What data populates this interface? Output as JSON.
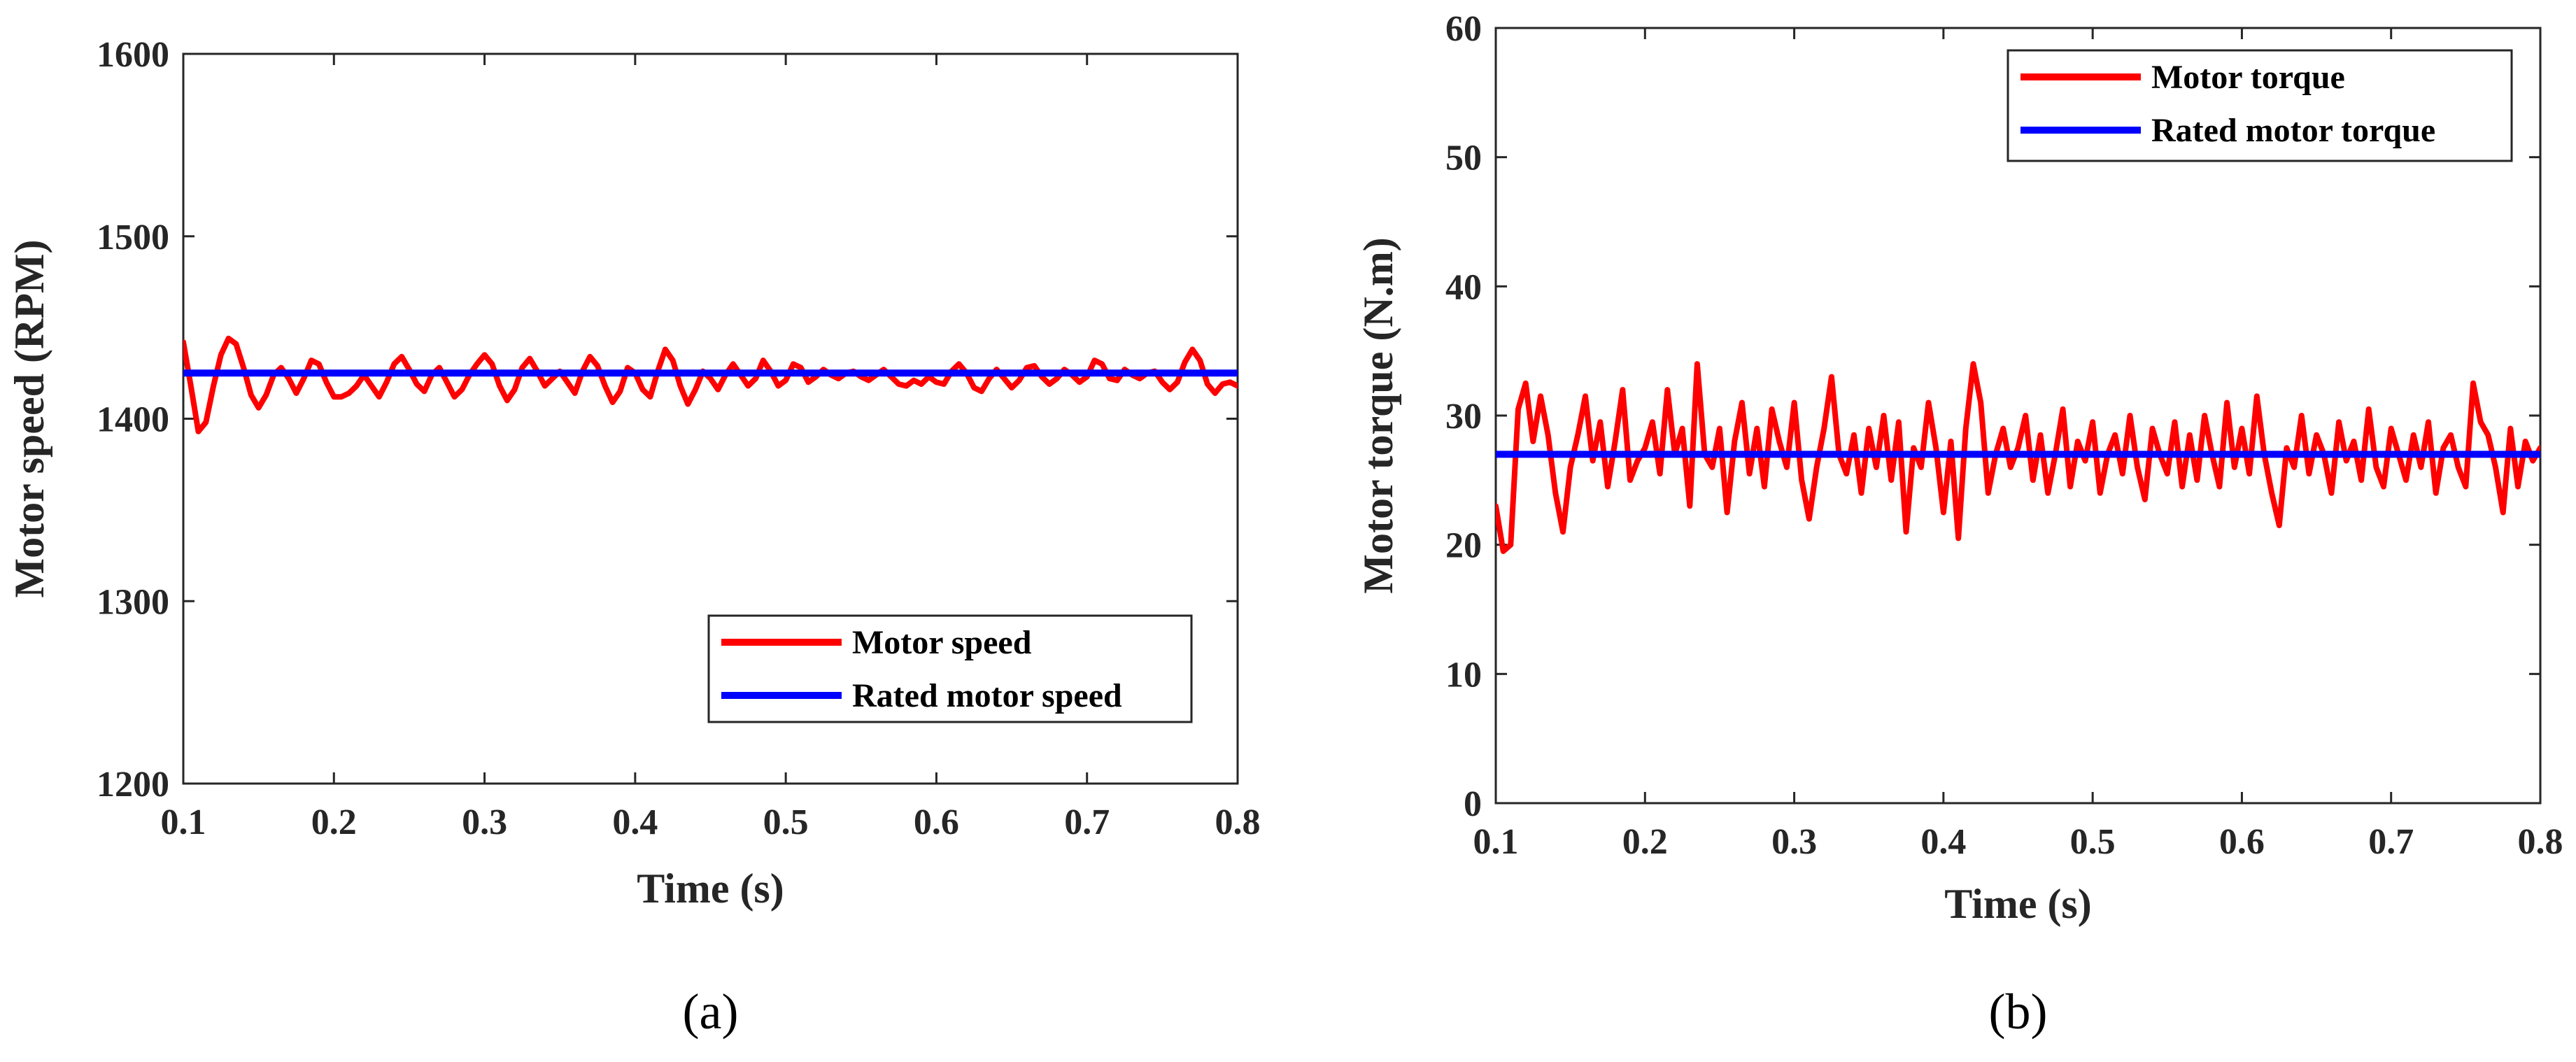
{
  "chart_data": [
    {
      "type": "line",
      "caption": "(a)",
      "xlabel": "Time (s)",
      "ylabel": "Motor speed (RPM)",
      "xlim": [
        0.1,
        0.8
      ],
      "ylim": [
        1200,
        1600
      ],
      "xticks": [
        "0.1",
        "0.2",
        "0.3",
        "0.4",
        "0.5",
        "0.6",
        "0.7",
        "0.8"
      ],
      "yticks": [
        "1200",
        "1300",
        "1400",
        "1500",
        "1600"
      ],
      "grid": false,
      "legend_position": "bottom-right",
      "series": [
        {
          "name": "Motor speed",
          "color": "#ff0000",
          "x": [
            0.1,
            0.105,
            0.11,
            0.115,
            0.12,
            0.125,
            0.13,
            0.135,
            0.14,
            0.145,
            0.15,
            0.155,
            0.16,
            0.165,
            0.17,
            0.175,
            0.18,
            0.185,
            0.19,
            0.195,
            0.2,
            0.205,
            0.21,
            0.215,
            0.22,
            0.225,
            0.23,
            0.235,
            0.24,
            0.245,
            0.25,
            0.255,
            0.26,
            0.265,
            0.27,
            0.275,
            0.28,
            0.285,
            0.29,
            0.295,
            0.3,
            0.305,
            0.31,
            0.315,
            0.32,
            0.325,
            0.33,
            0.335,
            0.34,
            0.345,
            0.35,
            0.355,
            0.36,
            0.365,
            0.37,
            0.375,
            0.38,
            0.385,
            0.39,
            0.395,
            0.4,
            0.405,
            0.41,
            0.415,
            0.42,
            0.425,
            0.43,
            0.435,
            0.44,
            0.445,
            0.45,
            0.455,
            0.46,
            0.465,
            0.47,
            0.475,
            0.48,
            0.485,
            0.49,
            0.495,
            0.5,
            0.505,
            0.51,
            0.515,
            0.52,
            0.525,
            0.53,
            0.535,
            0.54,
            0.545,
            0.55,
            0.555,
            0.56,
            0.565,
            0.57,
            0.575,
            0.58,
            0.585,
            0.59,
            0.595,
            0.6,
            0.605,
            0.61,
            0.615,
            0.62,
            0.625,
            0.63,
            0.635,
            0.64,
            0.645,
            0.65,
            0.655,
            0.66,
            0.665,
            0.67,
            0.675,
            0.68,
            0.685,
            0.69,
            0.695,
            0.7,
            0.705,
            0.71,
            0.715,
            0.72,
            0.725,
            0.73,
            0.735,
            0.74,
            0.745,
            0.75,
            0.755,
            0.76,
            0.765,
            0.77,
            0.775,
            0.78,
            0.785,
            0.79,
            0.795,
            0.8
          ],
          "y": [
            1442,
            1418,
            1393,
            1398,
            1418,
            1435,
            1444,
            1441,
            1428,
            1413,
            1406,
            1413,
            1424,
            1428,
            1422,
            1414,
            1422,
            1432,
            1430,
            1420,
            1412,
            1412,
            1414,
            1418,
            1424,
            1418,
            1412,
            1420,
            1430,
            1434,
            1427,
            1419,
            1415,
            1424,
            1428,
            1420,
            1412,
            1416,
            1424,
            1430,
            1435,
            1430,
            1418,
            1410,
            1416,
            1428,
            1433,
            1426,
            1418,
            1422,
            1426,
            1420,
            1414,
            1426,
            1434,
            1429,
            1418,
            1409,
            1415,
            1428,
            1425,
            1416,
            1412,
            1426,
            1438,
            1432,
            1418,
            1408,
            1416,
            1426,
            1422,
            1416,
            1424,
            1430,
            1424,
            1418,
            1422,
            1432,
            1426,
            1418,
            1421,
            1430,
            1428,
            1420,
            1423,
            1427,
            1424,
            1422,
            1425,
            1426,
            1423,
            1421,
            1424,
            1427,
            1423,
            1419,
            1418,
            1421,
            1419,
            1423,
            1420,
            1419,
            1426,
            1430,
            1425,
            1417,
            1415,
            1422,
            1427,
            1422,
            1417,
            1421,
            1428,
            1429,
            1423,
            1419,
            1422,
            1427,
            1424,
            1420,
            1423,
            1432,
            1430,
            1422,
            1421,
            1427,
            1424,
            1422,
            1425,
            1426,
            1420,
            1416,
            1420,
            1431,
            1438,
            1432,
            1419,
            1414,
            1419,
            1420,
            1418
          ]
        },
        {
          "name": "Rated motor speed",
          "color": "#0000ff",
          "x": [
            0.1,
            0.8
          ],
          "y": [
            1425,
            1425
          ]
        }
      ]
    },
    {
      "type": "line",
      "caption": "(b)",
      "xlabel": "Time (s)",
      "ylabel": "Motor torque (N.m)",
      "xlim": [
        0.1,
        0.8
      ],
      "ylim": [
        0,
        60
      ],
      "xticks": [
        "0.1",
        "0.2",
        "0.3",
        "0.4",
        "0.5",
        "0.6",
        "0.7",
        "0.8"
      ],
      "yticks": [
        "0",
        "10",
        "20",
        "30",
        "40",
        "50",
        "60"
      ],
      "grid": false,
      "legend_position": "top-right",
      "series": [
        {
          "name": "Motor torque",
          "color": "#ff0000",
          "x": [
            0.1,
            0.105,
            0.11,
            0.115,
            0.12,
            0.125,
            0.13,
            0.135,
            0.14,
            0.145,
            0.15,
            0.155,
            0.16,
            0.165,
            0.17,
            0.175,
            0.18,
            0.185,
            0.19,
            0.195,
            0.2,
            0.205,
            0.21,
            0.215,
            0.22,
            0.225,
            0.23,
            0.235,
            0.24,
            0.245,
            0.25,
            0.255,
            0.26,
            0.265,
            0.27,
            0.275,
            0.28,
            0.285,
            0.29,
            0.295,
            0.3,
            0.305,
            0.31,
            0.315,
            0.32,
            0.325,
            0.33,
            0.335,
            0.34,
            0.345,
            0.35,
            0.355,
            0.36,
            0.365,
            0.37,
            0.375,
            0.38,
            0.385,
            0.39,
            0.395,
            0.4,
            0.405,
            0.41,
            0.415,
            0.42,
            0.425,
            0.43,
            0.435,
            0.44,
            0.445,
            0.45,
            0.455,
            0.46,
            0.465,
            0.47,
            0.475,
            0.48,
            0.485,
            0.49,
            0.495,
            0.5,
            0.505,
            0.51,
            0.515,
            0.52,
            0.525,
            0.53,
            0.535,
            0.54,
            0.545,
            0.55,
            0.555,
            0.56,
            0.565,
            0.57,
            0.575,
            0.58,
            0.585,
            0.59,
            0.595,
            0.6,
            0.605,
            0.61,
            0.615,
            0.62,
            0.625,
            0.63,
            0.635,
            0.64,
            0.645,
            0.65,
            0.655,
            0.66,
            0.665,
            0.67,
            0.675,
            0.68,
            0.685,
            0.69,
            0.695,
            0.7,
            0.705,
            0.71,
            0.715,
            0.72,
            0.725,
            0.73,
            0.735,
            0.74,
            0.745,
            0.75,
            0.755,
            0.76,
            0.765,
            0.77,
            0.775,
            0.78,
            0.785,
            0.79,
            0.795,
            0.8
          ],
          "y": [
            23.0,
            19.5,
            20.0,
            30.5,
            32.5,
            28.0,
            31.5,
            28.5,
            24.0,
            21.0,
            26.0,
            28.5,
            31.5,
            26.5,
            29.5,
            24.5,
            28.0,
            32.0,
            25.0,
            26.5,
            27.5,
            29.5,
            25.5,
            32.0,
            27.0,
            29.0,
            23.0,
            34.0,
            27.0,
            26.0,
            29.0,
            22.5,
            28.0,
            31.0,
            25.5,
            29.0,
            24.5,
            30.5,
            28.0,
            26.0,
            31.0,
            25.0,
            22.0,
            26.0,
            29.0,
            33.0,
            27.0,
            25.5,
            28.5,
            24.0,
            29.0,
            26.0,
            30.0,
            25.0,
            29.5,
            21.0,
            27.5,
            26.0,
            31.0,
            27.5,
            22.5,
            28.0,
            20.5,
            29.0,
            34.0,
            31.0,
            24.0,
            27.0,
            29.0,
            26.0,
            27.5,
            30.0,
            25.0,
            28.5,
            24.0,
            27.0,
            30.5,
            24.5,
            28.0,
            26.5,
            29.5,
            24.0,
            27.0,
            28.5,
            25.5,
            30.0,
            26.0,
            23.5,
            29.0,
            27.0,
            25.5,
            29.5,
            24.5,
            28.5,
            25.0,
            30.0,
            27.0,
            24.5,
            31.0,
            26.0,
            29.0,
            25.5,
            31.5,
            27.0,
            24.0,
            21.5,
            27.5,
            26.0,
            30.0,
            25.5,
            28.5,
            27.0,
            24.0,
            29.5,
            26.5,
            28.0,
            25.0,
            30.5,
            26.0,
            24.5,
            29.0,
            27.0,
            25.0,
            28.5,
            26.0,
            29.5,
            24.0,
            27.5,
            28.5,
            26.0,
            24.5,
            32.5,
            29.5,
            28.5,
            26.0,
            22.5,
            29.0,
            24.5,
            28.0,
            26.5,
            27.5
          ]
        },
        {
          "name": "Rated motor torque",
          "color": "#0000ff",
          "x": [
            0.1,
            0.8
          ],
          "y": [
            27,
            27
          ]
        }
      ]
    }
  ]
}
